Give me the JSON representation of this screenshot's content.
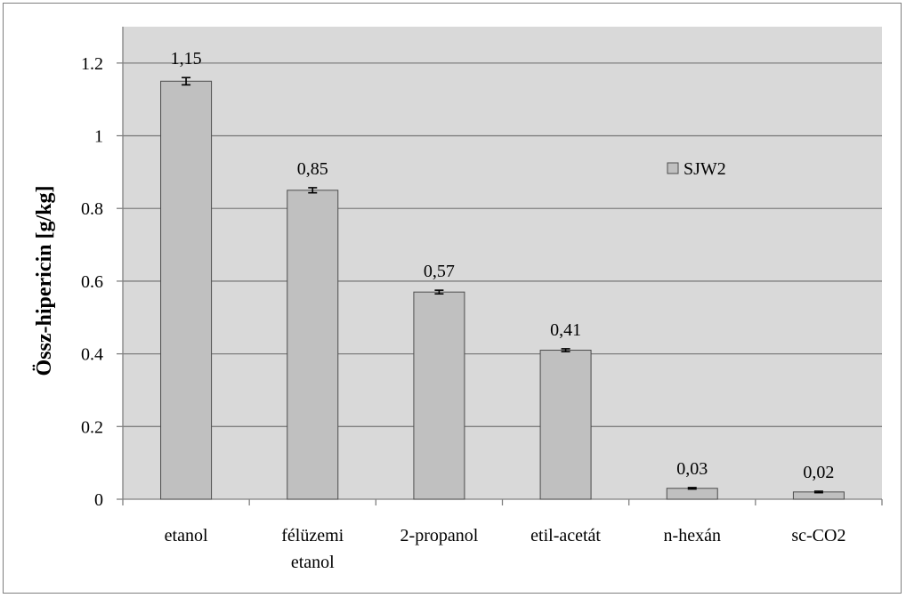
{
  "chart_data": {
    "type": "bar",
    "categories": [
      [
        "etanol"
      ],
      [
        "félüzemi",
        "etanol"
      ],
      [
        "2-propanol"
      ],
      [
        "etil-acetát"
      ],
      [
        "n-hexán"
      ],
      [
        "sc-CO2"
      ]
    ],
    "series": [
      {
        "name": "SJW2",
        "values": [
          1.15,
          0.85,
          0.57,
          0.41,
          0.03,
          0.02
        ],
        "data_labels": [
          "1,15",
          "0,85",
          "0,57",
          "0,41",
          "0,03",
          "0,02"
        ],
        "errors": [
          0.01,
          0.007,
          0.005,
          0.004,
          0.002,
          0.002
        ],
        "color": "#c0c0c0"
      }
    ],
    "title": "",
    "xlabel": "",
    "ylabel": "Össz-hipericin [g/kg]",
    "ylim": [
      0,
      1.2
    ],
    "y_display_max": 1.3,
    "yticks": [
      0,
      0.2,
      0.4,
      0.6,
      0.8,
      1,
      1.2
    ],
    "ytick_labels": [
      "0",
      "0.2",
      "0.4",
      "0.6",
      "0.8",
      "1",
      "1.2"
    ],
    "grid": true,
    "legend": "inside-right",
    "plot_background": "#d9d9d9"
  }
}
